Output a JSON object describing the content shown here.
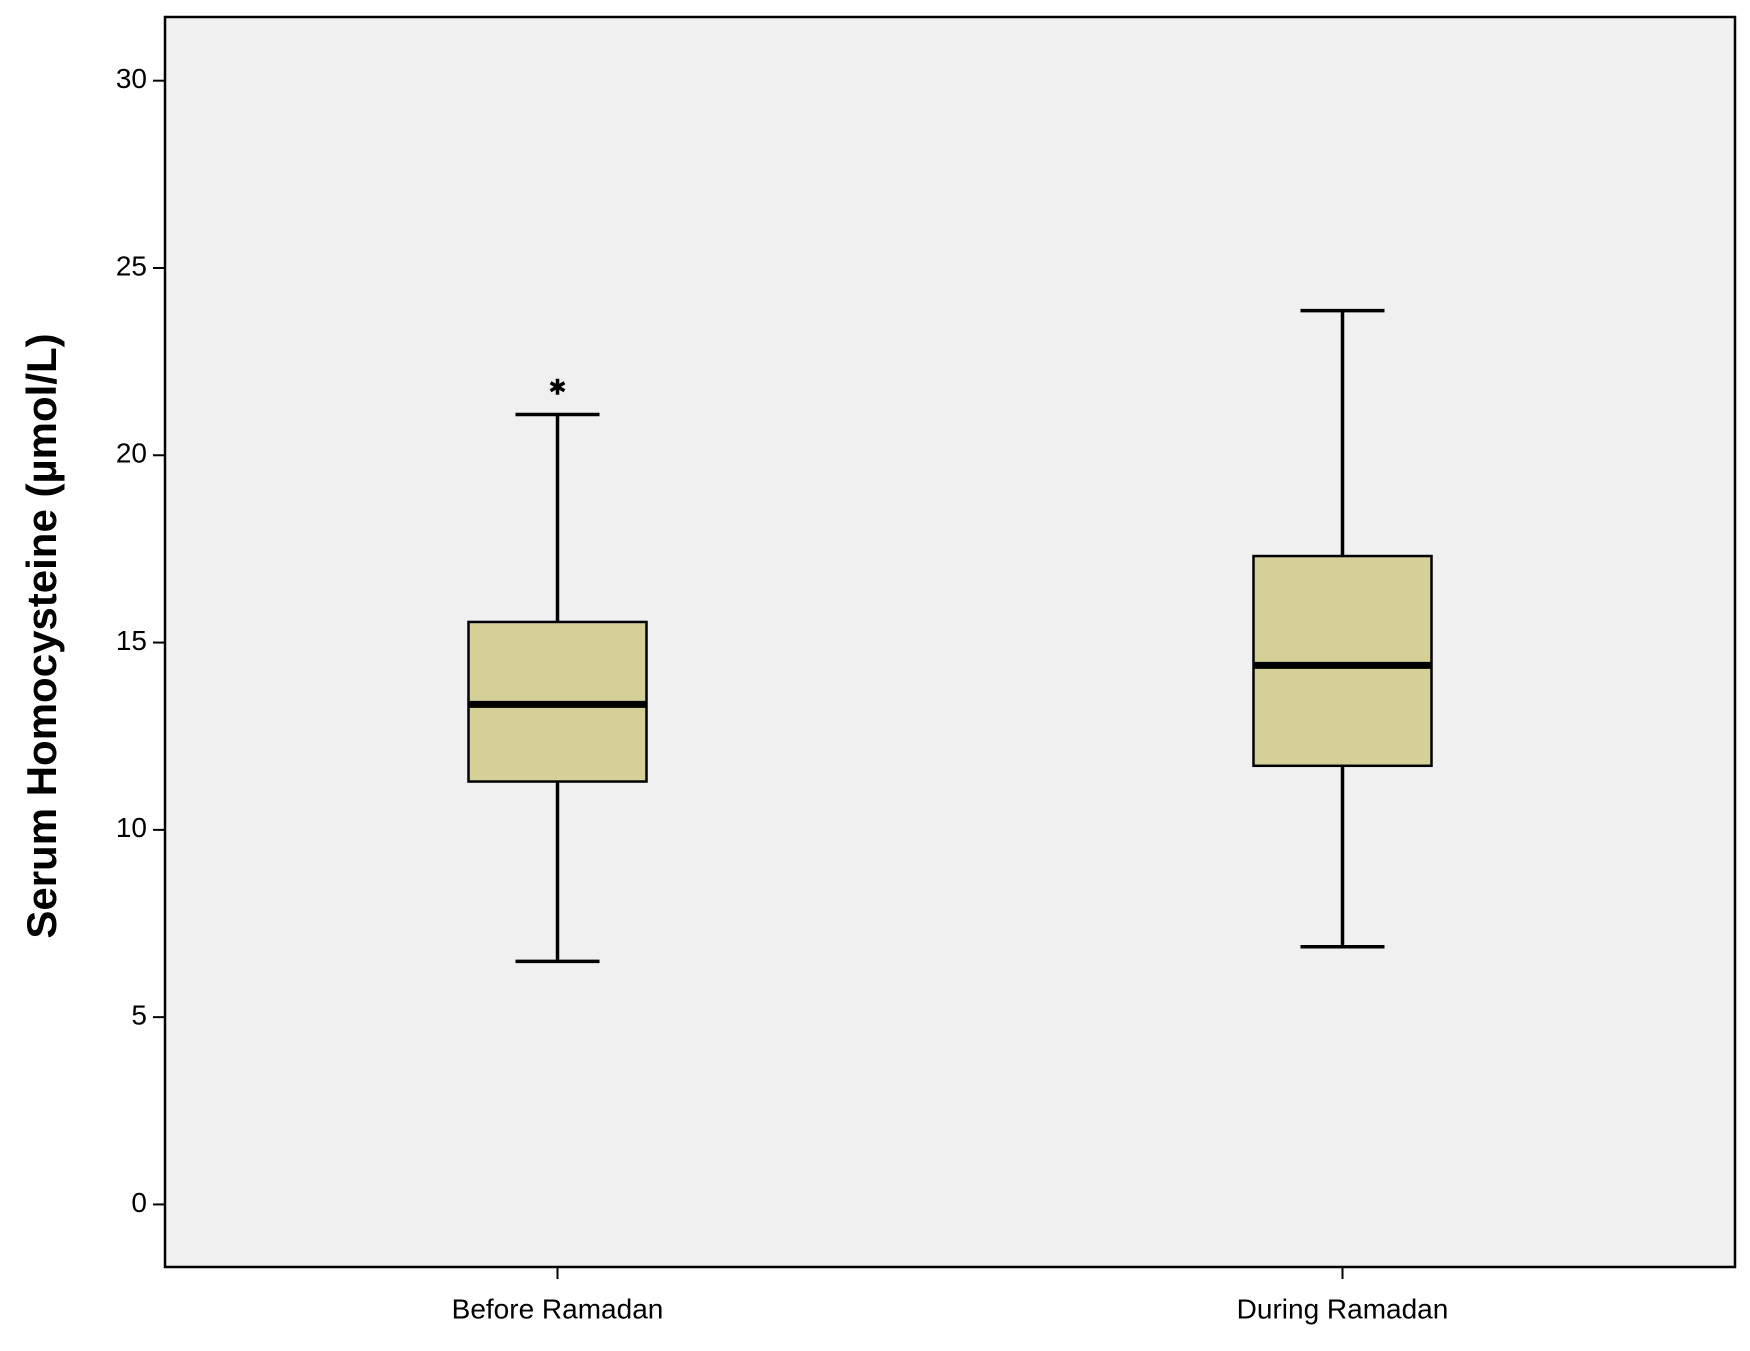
{
  "chart_data": {
    "type": "box",
    "y_label": "Serum Homocysteine (µmol/L)",
    "categories": [
      "Before Ramadan",
      "During Ramadan"
    ],
    "whisker_low": [
      6.49,
      6.88
    ],
    "q1": [
      11.29,
      11.71
    ],
    "median": [
      13.35,
      14.39
    ],
    "q3": [
      15.55,
      17.31
    ],
    "whisker_high": [
      21.09,
      23.86
    ],
    "outliers": [
      [
        21.83
      ],
      []
    ],
    "color": "#d4d097",
    "background": "#f0f0f0",
    "ylim": [
      -1.67,
      31.7
    ],
    "yticks": [
      0,
      5,
      10,
      15,
      20,
      25,
      30
    ]
  }
}
